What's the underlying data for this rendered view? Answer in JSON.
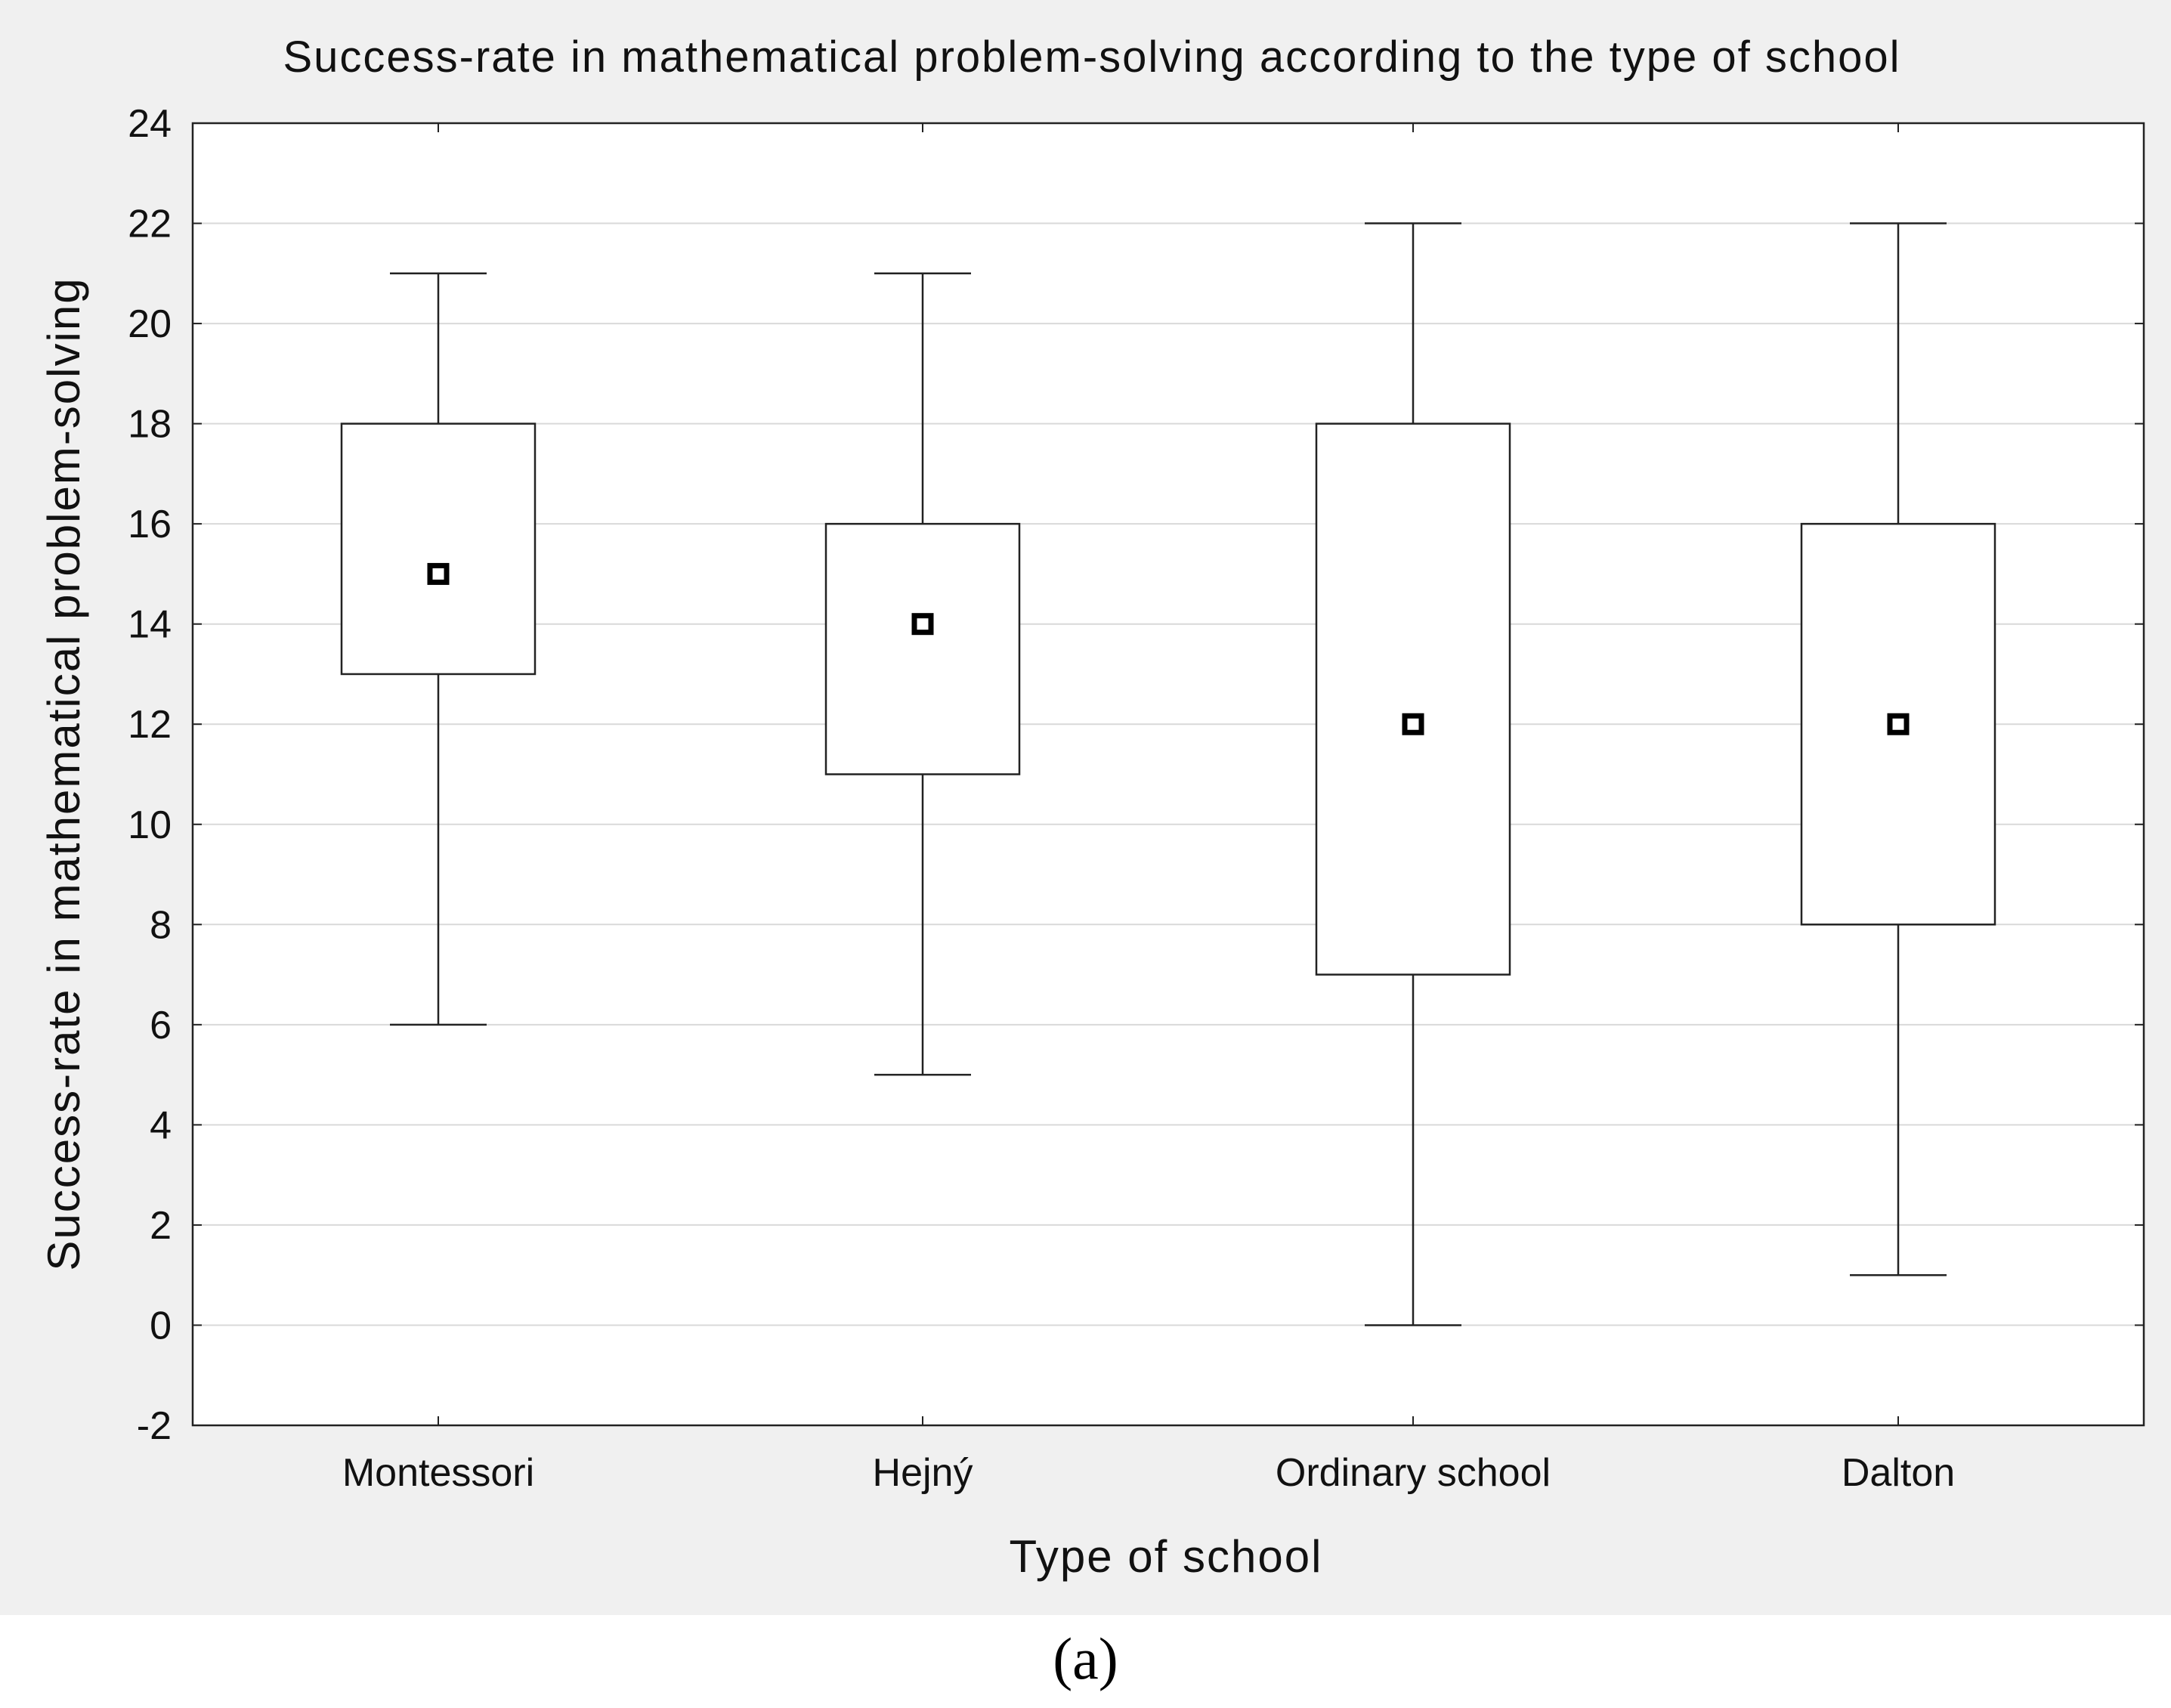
{
  "panel_label": "(a)",
  "chart_data": {
    "type": "boxplot",
    "title": "Success-rate in mathematical problem-solving according to the type of school",
    "xlabel": "Type of school",
    "ylabel": "Success-rate in mathematical problem-solving",
    "ylim": [
      -2,
      24
    ],
    "yticks": [
      -2,
      0,
      2,
      4,
      6,
      8,
      10,
      12,
      14,
      16,
      18,
      20,
      22,
      24
    ],
    "grid": true,
    "categories": [
      "Montessori",
      "Hejný",
      "Ordinary school",
      "Dalton"
    ],
    "boxes": [
      {
        "category": "Montessori",
        "whisker_low": 6,
        "q1": 13,
        "median": 15,
        "q3": 18,
        "whisker_high": 21
      },
      {
        "category": "Hejný",
        "whisker_low": 5,
        "q1": 11,
        "median": 14,
        "q3": 16,
        "whisker_high": 21
      },
      {
        "category": "Ordinary school",
        "whisker_low": 0,
        "q1": 7,
        "median": 12,
        "q3": 18,
        "whisker_high": 22
      },
      {
        "category": "Dalton",
        "whisker_low": 1,
        "q1": 8,
        "median": 12,
        "q3": 16,
        "whisker_high": 22
      }
    ],
    "colors": {
      "background": "#f0f0f0",
      "plot_background": "#ffffff",
      "gridline": "#d9d9d9",
      "line": "#222222"
    }
  }
}
